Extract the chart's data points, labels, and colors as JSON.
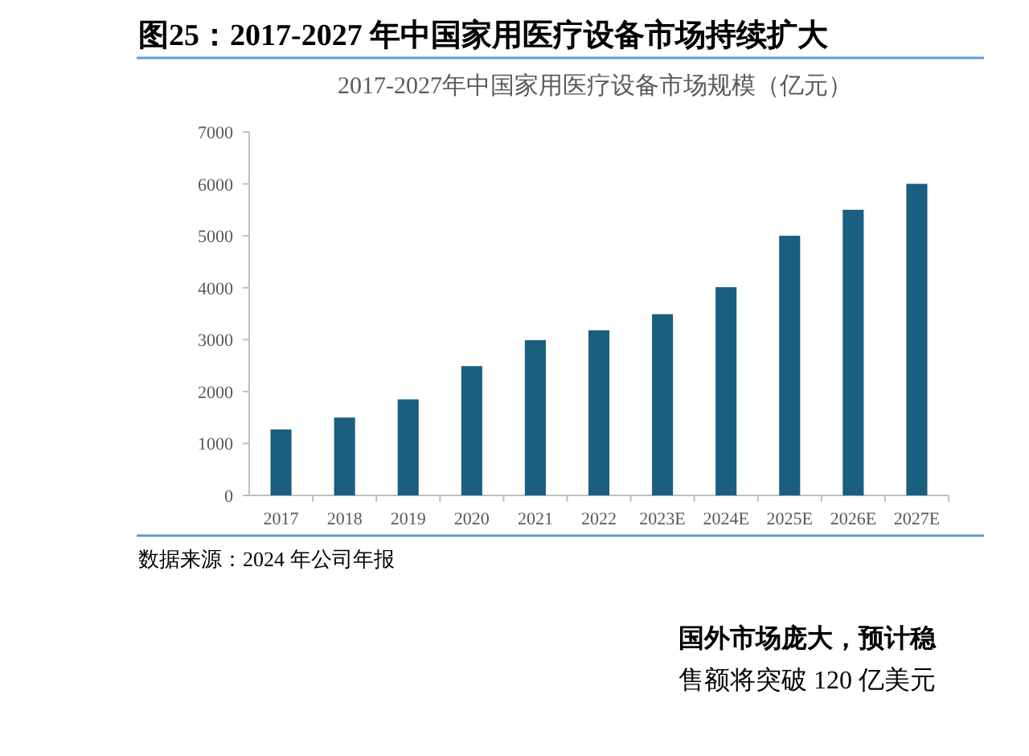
{
  "chart_data": {
    "type": "bar",
    "title": "图25：2017-2027 年中国家用医疗设备市场持续扩大",
    "subtitle": "2017-2027年中国家用医疗设备市场规模（亿元）",
    "categories": [
      "2017",
      "2018",
      "2019",
      "2020",
      "2021",
      "2022",
      "2023E",
      "2024E",
      "2025E",
      "2026E",
      "2027E"
    ],
    "values": [
      1270,
      1500,
      1850,
      2490,
      2990,
      3180,
      3490,
      4010,
      5000,
      5500,
      6000
    ],
    "color": "#1a5e80",
    "ylim": [
      0,
      7000
    ],
    "yticks": [
      0,
      1000,
      2000,
      3000,
      4000,
      5000,
      6000,
      7000
    ],
    "grid": false,
    "annotations": [
      "数据来源：2024 年公司年报",
      "国外市场庞大，预计稳",
      "售额将突破 120 亿美元"
    ]
  }
}
